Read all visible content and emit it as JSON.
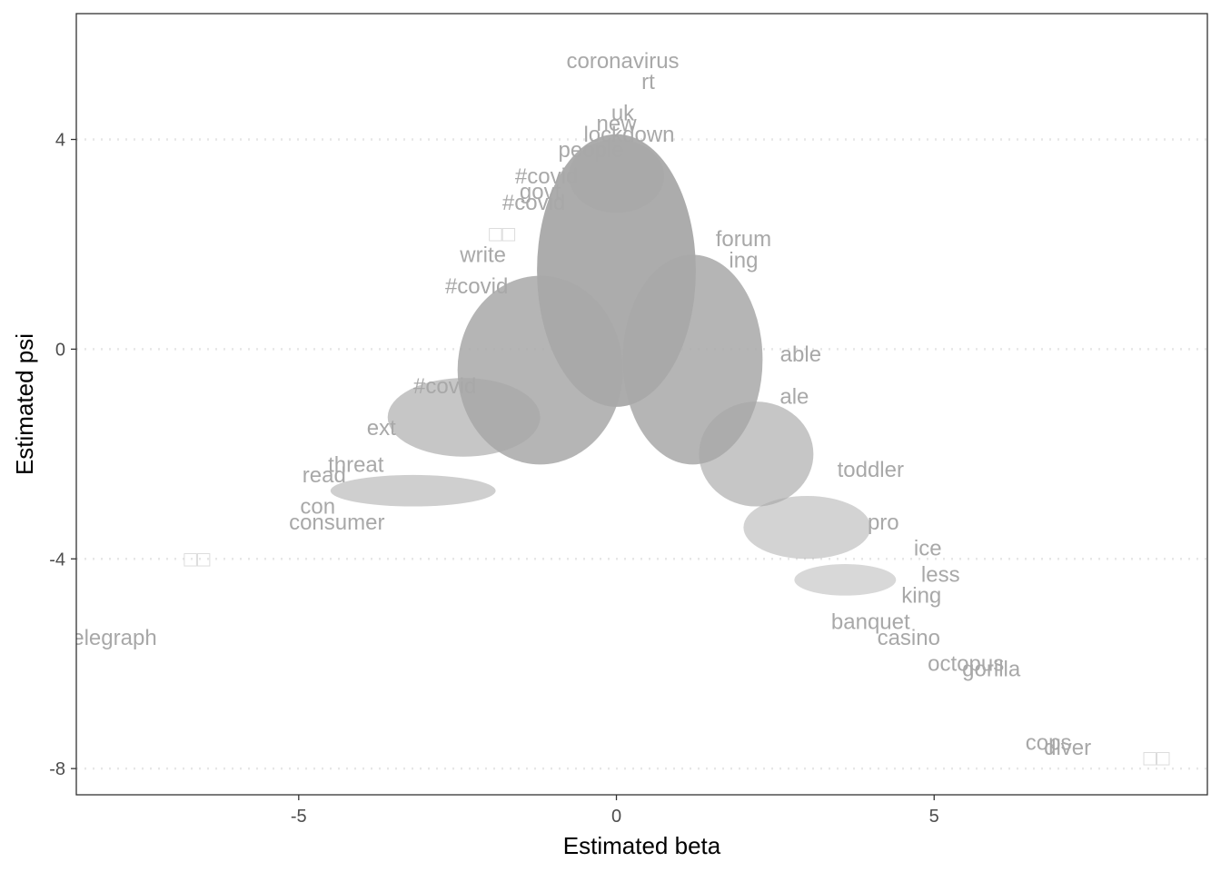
{
  "chart_data": {
    "type": "scatter",
    "title": "",
    "xlabel": "Estimated beta",
    "ylabel": "Estimated psi",
    "xlim": [
      -8.5,
      9.3
    ],
    "ylim": [
      -8.5,
      6.4
    ],
    "x_ticks": [
      -5,
      0,
      5
    ],
    "y_ticks": [
      -8,
      -4,
      0,
      4
    ],
    "grid": "horizontal-dotted",
    "legend": "none",
    "colors": {
      "text": "#a8a8a8",
      "grid": "#e6e6e6",
      "frame": "#333333"
    },
    "labeled_points": [
      {
        "label": "coronavirus",
        "x": 0.1,
        "y": 5.5
      },
      {
        "label": "rt",
        "x": 0.5,
        "y": 5.1
      },
      {
        "label": "uk",
        "x": 0.1,
        "y": 4.5
      },
      {
        "label": "new",
        "x": 0.0,
        "y": 4.3
      },
      {
        "label": "lockdown",
        "x": 0.2,
        "y": 4.1
      },
      {
        "label": "people",
        "x": -0.4,
        "y": 3.8
      },
      {
        "label": "#covid",
        "x": -1.1,
        "y": 3.3
      },
      {
        "label": "govt",
        "x": -1.2,
        "y": 3.0
      },
      {
        "label": "#covid",
        "x": -1.3,
        "y": 2.8
      },
      {
        "label": "write",
        "x": -2.1,
        "y": 1.8
      },
      {
        "label": "#covid",
        "x": -2.2,
        "y": 1.2
      },
      {
        "label": "#covid",
        "x": -2.7,
        "y": -0.7
      },
      {
        "label": "ext",
        "x": -3.7,
        "y": -1.5
      },
      {
        "label": "threat",
        "x": -4.1,
        "y": -2.2
      },
      {
        "label": "read",
        "x": -4.6,
        "y": -2.4
      },
      {
        "label": "con",
        "x": -4.7,
        "y": -3.0
      },
      {
        "label": "consumer",
        "x": -4.4,
        "y": -3.3
      },
      {
        "label": "elegraph",
        "x": -7.9,
        "y": -5.5
      },
      {
        "label": "forum",
        "x": 2.0,
        "y": 2.1
      },
      {
        "label": "ing",
        "x": 2.0,
        "y": 1.7
      },
      {
        "label": "able",
        "x": 2.9,
        "y": -0.1
      },
      {
        "label": "ale",
        "x": 2.8,
        "y": -0.9
      },
      {
        "label": "toddler",
        "x": 4.0,
        "y": -2.3
      },
      {
        "label": "pro",
        "x": 4.2,
        "y": -3.3
      },
      {
        "label": "ice",
        "x": 4.9,
        "y": -3.8
      },
      {
        "label": "less",
        "x": 5.1,
        "y": -4.3
      },
      {
        "label": "king",
        "x": 4.8,
        "y": -4.7
      },
      {
        "label": "banquet",
        "x": 4.0,
        "y": -5.2
      },
      {
        "label": "casino",
        "x": 4.6,
        "y": -5.5
      },
      {
        "label": "octopus",
        "x": 5.5,
        "y": -6.0
      },
      {
        "label": "gorilla",
        "x": 5.9,
        "y": -6.1
      },
      {
        "label": "cops",
        "x": 6.8,
        "y": -7.5
      },
      {
        "label": "diver",
        "x": 7.1,
        "y": -7.6
      },
      {
        "label": "□□",
        "x": -6.6,
        "y": -4.0
      },
      {
        "label": "□□",
        "x": -1.8,
        "y": 2.2
      },
      {
        "label": "□□",
        "x": 8.5,
        "y": -7.8
      }
    ]
  }
}
